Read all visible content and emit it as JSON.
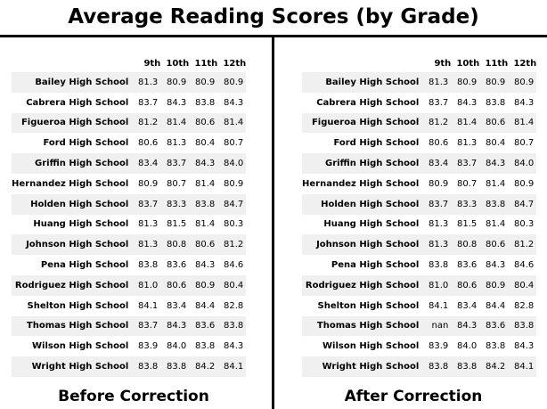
{
  "title": "Average Reading Scores (by Grade)",
  "columns": [
    "9th",
    "10th",
    "11th",
    "12th"
  ],
  "before": {
    "caption": "Before Correction",
    "rows": [
      {
        "school": "Bailey High School",
        "values": [
          "81.3",
          "80.9",
          "80.9",
          "80.9"
        ]
      },
      {
        "school": "Cabrera High School",
        "values": [
          "83.7",
          "84.3",
          "83.8",
          "84.3"
        ]
      },
      {
        "school": "Figueroa High School",
        "values": [
          "81.2",
          "81.4",
          "80.6",
          "81.4"
        ]
      },
      {
        "school": "Ford High School",
        "values": [
          "80.6",
          "81.3",
          "80.4",
          "80.7"
        ]
      },
      {
        "school": "Griffin High School",
        "values": [
          "83.4",
          "83.7",
          "84.3",
          "84.0"
        ]
      },
      {
        "school": "Hernandez High School",
        "values": [
          "80.9",
          "80.7",
          "81.4",
          "80.9"
        ]
      },
      {
        "school": "Holden High School",
        "values": [
          "83.7",
          "83.3",
          "83.8",
          "84.7"
        ]
      },
      {
        "school": "Huang High School",
        "values": [
          "81.3",
          "81.5",
          "81.4",
          "80.3"
        ]
      },
      {
        "school": "Johnson High School",
        "values": [
          "81.3",
          "80.8",
          "80.6",
          "81.2"
        ]
      },
      {
        "school": "Pena High School",
        "values": [
          "83.8",
          "83.6",
          "84.3",
          "84.6"
        ]
      },
      {
        "school": "Rodriguez High School",
        "values": [
          "81.0",
          "80.6",
          "80.9",
          "80.4"
        ]
      },
      {
        "school": "Shelton High School",
        "values": [
          "84.1",
          "83.4",
          "84.4",
          "82.8"
        ]
      },
      {
        "school": "Thomas High School",
        "values": [
          "83.7",
          "84.3",
          "83.6",
          "83.8"
        ]
      },
      {
        "school": "Wilson High School",
        "values": [
          "83.9",
          "84.0",
          "83.8",
          "84.3"
        ]
      },
      {
        "school": "Wright High School",
        "values": [
          "83.8",
          "83.8",
          "84.2",
          "84.1"
        ]
      }
    ]
  },
  "after": {
    "caption": "After Correction",
    "rows": [
      {
        "school": "Bailey High School",
        "values": [
          "81.3",
          "80.9",
          "80.9",
          "80.9"
        ]
      },
      {
        "school": "Cabrera High School",
        "values": [
          "83.7",
          "84.3",
          "83.8",
          "84.3"
        ]
      },
      {
        "school": "Figueroa High School",
        "values": [
          "81.2",
          "81.4",
          "80.6",
          "81.4"
        ]
      },
      {
        "school": "Ford High School",
        "values": [
          "80.6",
          "81.3",
          "80.4",
          "80.7"
        ]
      },
      {
        "school": "Griffin High School",
        "values": [
          "83.4",
          "83.7",
          "84.3",
          "84.0"
        ]
      },
      {
        "school": "Hernandez High School",
        "values": [
          "80.9",
          "80.7",
          "81.4",
          "80.9"
        ]
      },
      {
        "school": "Holden High School",
        "values": [
          "83.7",
          "83.3",
          "83.8",
          "84.7"
        ]
      },
      {
        "school": "Huang High School",
        "values": [
          "81.3",
          "81.5",
          "81.4",
          "80.3"
        ]
      },
      {
        "school": "Johnson High School",
        "values": [
          "81.3",
          "80.8",
          "80.6",
          "81.2"
        ]
      },
      {
        "school": "Pena High School",
        "values": [
          "83.8",
          "83.6",
          "84.3",
          "84.6"
        ]
      },
      {
        "school": "Rodriguez High School",
        "values": [
          "81.0",
          "80.6",
          "80.9",
          "80.4"
        ]
      },
      {
        "school": "Shelton High School",
        "values": [
          "84.1",
          "83.4",
          "84.4",
          "82.8"
        ]
      },
      {
        "school": "Thomas High School",
        "values": [
          "nan",
          "84.3",
          "83.6",
          "83.8"
        ]
      },
      {
        "school": "Wilson High School",
        "values": [
          "83.9",
          "84.0",
          "83.8",
          "84.3"
        ]
      },
      {
        "school": "Wright High School",
        "values": [
          "83.8",
          "83.8",
          "84.2",
          "84.1"
        ]
      }
    ]
  }
}
